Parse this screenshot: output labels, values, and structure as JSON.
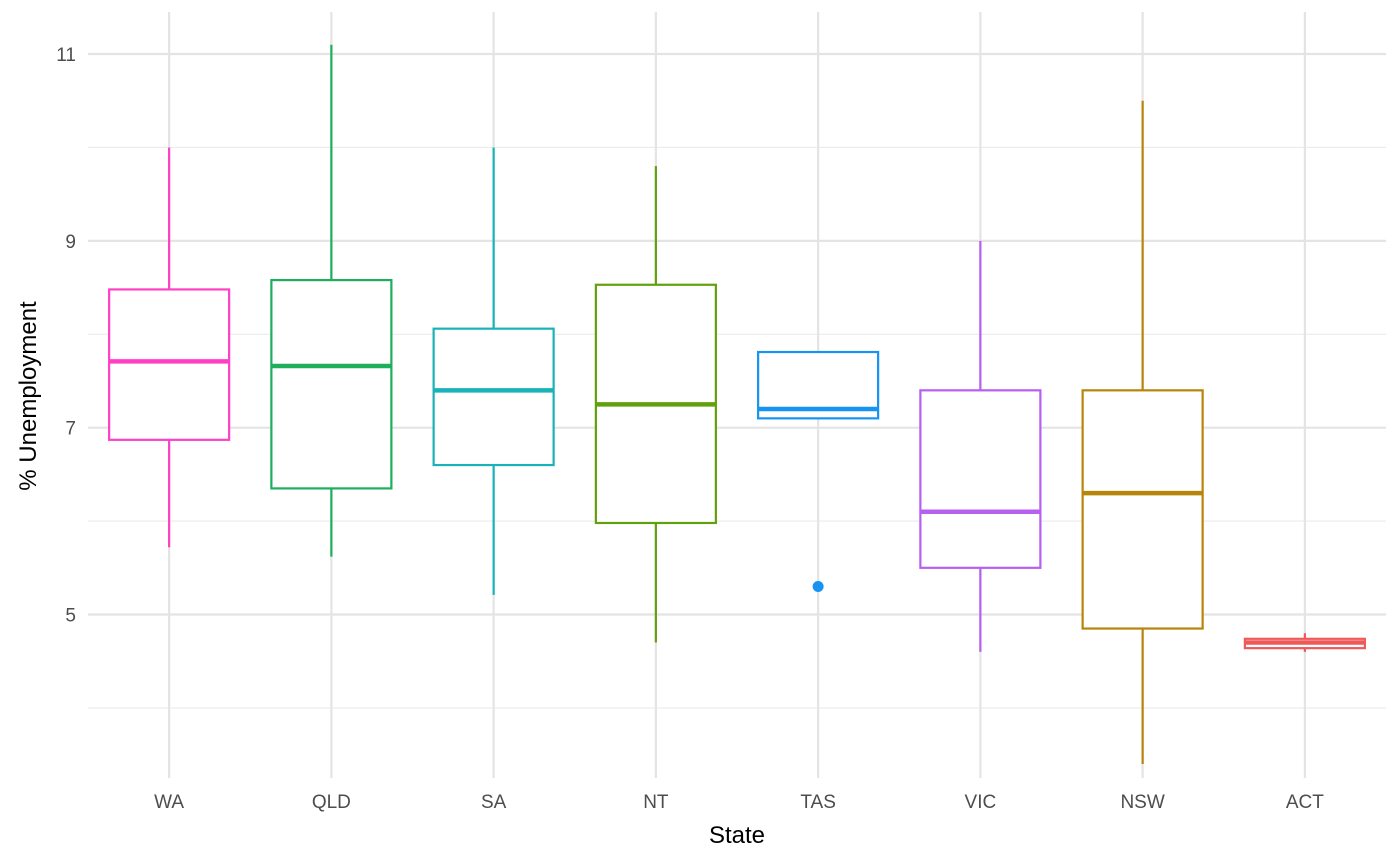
{
  "chart_data": {
    "type": "boxplot",
    "xlabel": "State",
    "ylabel": "% Unemployment",
    "ylim": [
      3.25,
      11.45
    ],
    "yticks": [
      5,
      7,
      9,
      11
    ],
    "y_minor_ticks": [
      4,
      6,
      8,
      10
    ],
    "grid": true,
    "legend": "none",
    "categories": [
      "WA",
      "QLD",
      "SA",
      "NT",
      "TAS",
      "VIC",
      "NSW",
      "ACT"
    ],
    "boxes": [
      {
        "category": "WA",
        "color": "#FF40C4",
        "min": 5.72,
        "q1": 6.87,
        "median": 7.71,
        "q3": 8.48,
        "max": 10.0,
        "outliers": []
      },
      {
        "category": "QLD",
        "color": "#1DAF5B",
        "min": 5.62,
        "q1": 6.35,
        "median": 7.66,
        "q3": 8.58,
        "max": 11.1,
        "outliers": []
      },
      {
        "category": "SA",
        "color": "#1AB2B9",
        "min": 5.21,
        "q1": 6.6,
        "median": 7.4,
        "q3": 8.06,
        "max": 10.0,
        "outliers": []
      },
      {
        "category": "NT",
        "color": "#62A10D",
        "min": 4.7,
        "q1": 5.98,
        "median": 7.25,
        "q3": 8.53,
        "max": 9.8,
        "outliers": []
      },
      {
        "category": "TAS",
        "color": "#1794F2",
        "min": 7.1,
        "q1": 7.1,
        "median": 7.2,
        "q3": 7.81,
        "max": 7.81,
        "outliers": [
          5.3
        ]
      },
      {
        "category": "VIC",
        "color": "#B65FF0",
        "min": 4.6,
        "q1": 5.5,
        "median": 6.1,
        "q3": 7.4,
        "max": 9.0,
        "outliers": []
      },
      {
        "category": "NSW",
        "color": "#B98508",
        "min": 3.4,
        "q1": 4.85,
        "median": 6.3,
        "q3": 7.4,
        "max": 10.5,
        "outliers": []
      },
      {
        "category": "ACT",
        "color": "#EE5A5A",
        "min": 4.6,
        "q1": 4.64,
        "median": 4.7,
        "q3": 4.74,
        "max": 4.8,
        "outliers": []
      }
    ]
  }
}
